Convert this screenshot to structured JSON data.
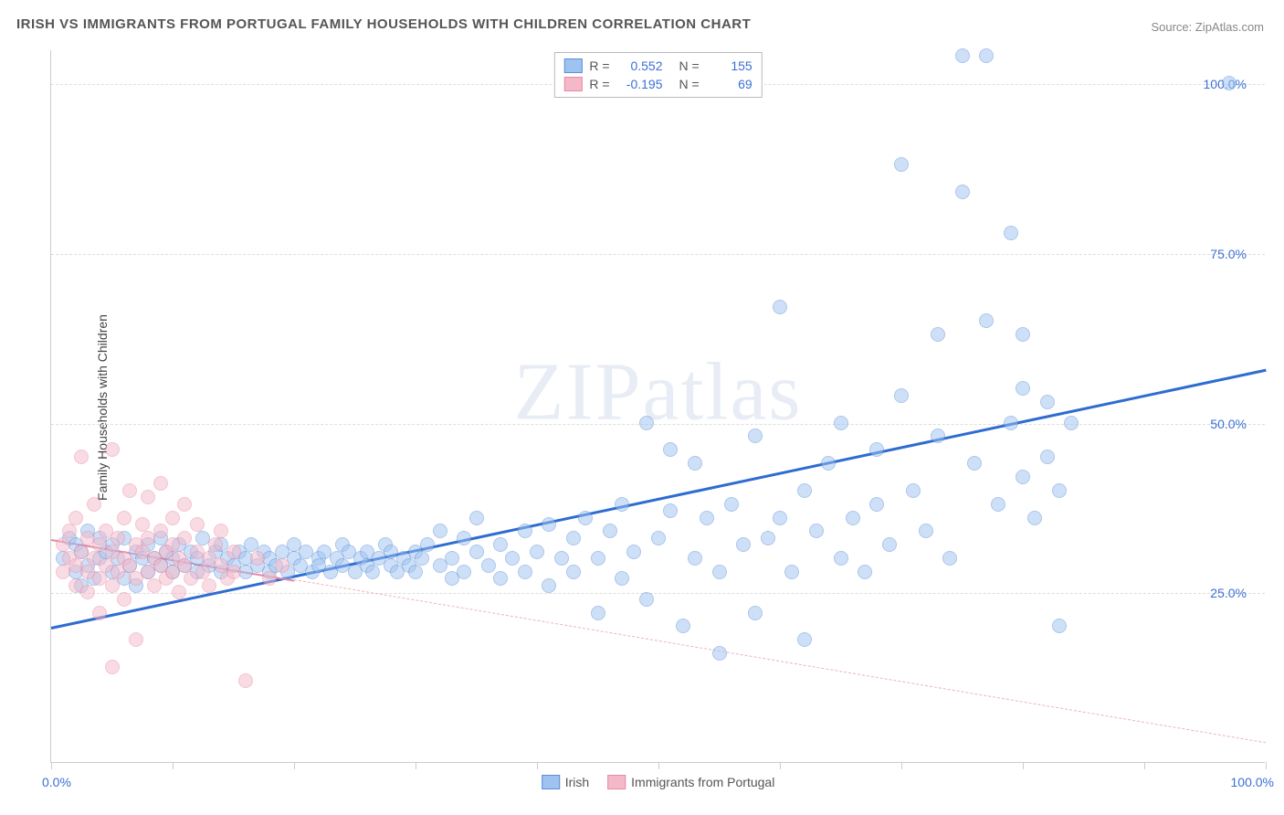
{
  "title": "IRISH VS IMMIGRANTS FROM PORTUGAL FAMILY HOUSEHOLDS WITH CHILDREN CORRELATION CHART",
  "source": "Source: ZipAtlas.com",
  "watermark": "ZIPatlas",
  "yaxis_label": "Family Households with Children",
  "chart": {
    "type": "scatter",
    "xlim": [
      0,
      100
    ],
    "ylim": [
      0,
      105
    ],
    "background_color": "#ffffff",
    "grid_color": "#dddddd",
    "grid_dash": true,
    "axis_color": "#cccccc",
    "tick_color": "#cccccc",
    "y_gridlines": [
      25,
      50,
      75,
      100
    ],
    "y_tick_labels": [
      "25.0%",
      "50.0%",
      "75.0%",
      "100.0%"
    ],
    "y_tick_color": "#3b6fd4",
    "y_tick_fontsize": 14,
    "x_ticks": [
      0,
      10,
      20,
      30,
      40,
      50,
      60,
      70,
      80,
      90,
      100
    ],
    "x_tick_labels": {
      "0": "0.0%",
      "100": "100.0%"
    },
    "x_tick_color": "#3b6fd4",
    "point_radius": 8,
    "point_opacity": 0.5,
    "point_stroke_width": 1
  },
  "series": [
    {
      "name": "Irish",
      "label": "Irish",
      "fill_color": "#9ec3f0",
      "stroke_color": "#5a8fd8",
      "R": "0.552",
      "N": "155",
      "trend": {
        "x1": 0,
        "y1": 20,
        "x2": 100,
        "y2": 58,
        "color": "#2e6cd1",
        "width": 3,
        "dash": false,
        "extrapolate": false
      },
      "points": [
        [
          1,
          30
        ],
        [
          1.5,
          33
        ],
        [
          2,
          32
        ],
        [
          2,
          28
        ],
        [
          2.5,
          26
        ],
        [
          2.5,
          31
        ],
        [
          3,
          34
        ],
        [
          3,
          29
        ],
        [
          3.5,
          27
        ],
        [
          4,
          30
        ],
        [
          4,
          33
        ],
        [
          4.5,
          31
        ],
        [
          5,
          28
        ],
        [
          5,
          32
        ],
        [
          5.5,
          30
        ],
        [
          6,
          33
        ],
        [
          6,
          27
        ],
        [
          6.5,
          29
        ],
        [
          7,
          31
        ],
        [
          7,
          26
        ],
        [
          7.5,
          30
        ],
        [
          8,
          32
        ],
        [
          8,
          28
        ],
        [
          8.5,
          30
        ],
        [
          9,
          29
        ],
        [
          9,
          33
        ],
        [
          9.5,
          31
        ],
        [
          10,
          28
        ],
        [
          10,
          30
        ],
        [
          10.5,
          32
        ],
        [
          11,
          29
        ],
        [
          11.5,
          31
        ],
        [
          12,
          28
        ],
        [
          12,
          30
        ],
        [
          12.5,
          33
        ],
        [
          13,
          29
        ],
        [
          13.5,
          31
        ],
        [
          14,
          28
        ],
        [
          14,
          32
        ],
        [
          14.5,
          30
        ],
        [
          15,
          29
        ],
        [
          15.5,
          31
        ],
        [
          16,
          28
        ],
        [
          16,
          30
        ],
        [
          16.5,
          32
        ],
        [
          17,
          29
        ],
        [
          17.5,
          31
        ],
        [
          18,
          28
        ],
        [
          18,
          30
        ],
        [
          18.5,
          29
        ],
        [
          19,
          31
        ],
        [
          19.5,
          28
        ],
        [
          20,
          30
        ],
        [
          20,
          32
        ],
        [
          20.5,
          29
        ],
        [
          21,
          31
        ],
        [
          21.5,
          28
        ],
        [
          22,
          30
        ],
        [
          22,
          29
        ],
        [
          22.5,
          31
        ],
        [
          23,
          28
        ],
        [
          23.5,
          30
        ],
        [
          24,
          32
        ],
        [
          24,
          29
        ],
        [
          24.5,
          31
        ],
        [
          25,
          28
        ],
        [
          25.5,
          30
        ],
        [
          26,
          29
        ],
        [
          26,
          31
        ],
        [
          26.5,
          28
        ],
        [
          27,
          30
        ],
        [
          27.5,
          32
        ],
        [
          28,
          29
        ],
        [
          28,
          31
        ],
        [
          28.5,
          28
        ],
        [
          29,
          30
        ],
        [
          29.5,
          29
        ],
        [
          30,
          31
        ],
        [
          30,
          28
        ],
        [
          30.5,
          30
        ],
        [
          31,
          32
        ],
        [
          32,
          29
        ],
        [
          32,
          34
        ],
        [
          33,
          30
        ],
        [
          33,
          27
        ],
        [
          34,
          28
        ],
        [
          34,
          33
        ],
        [
          35,
          31
        ],
        [
          35,
          36
        ],
        [
          36,
          29
        ],
        [
          37,
          32
        ],
        [
          37,
          27
        ],
        [
          38,
          30
        ],
        [
          39,
          34
        ],
        [
          39,
          28
        ],
        [
          40,
          31
        ],
        [
          41,
          35
        ],
        [
          41,
          26
        ],
        [
          42,
          30
        ],
        [
          43,
          33
        ],
        [
          43,
          28
        ],
        [
          44,
          36
        ],
        [
          45,
          30
        ],
        [
          45,
          22
        ],
        [
          46,
          34
        ],
        [
          47,
          38
        ],
        [
          47,
          27
        ],
        [
          48,
          31
        ],
        [
          49,
          50
        ],
        [
          49,
          24
        ],
        [
          50,
          33
        ],
        [
          51,
          37
        ],
        [
          51,
          46
        ],
        [
          52,
          20
        ],
        [
          53,
          30
        ],
        [
          53,
          44
        ],
        [
          54,
          36
        ],
        [
          55,
          28
        ],
        [
          55,
          16
        ],
        [
          56,
          38
        ],
        [
          57,
          32
        ],
        [
          58,
          48
        ],
        [
          58,
          22
        ],
        [
          59,
          33
        ],
        [
          60,
          36
        ],
        [
          60,
          67
        ],
        [
          61,
          28
        ],
        [
          62,
          40
        ],
        [
          62,
          18
        ],
        [
          63,
          34
        ],
        [
          64,
          44
        ],
        [
          65,
          30
        ],
        [
          65,
          50
        ],
        [
          66,
          36
        ],
        [
          67,
          28
        ],
        [
          68,
          46
        ],
        [
          68,
          38
        ],
        [
          69,
          32
        ],
        [
          70,
          54
        ],
        [
          70,
          88
        ],
        [
          71,
          40
        ],
        [
          72,
          34
        ],
        [
          73,
          48
        ],
        [
          73,
          63
        ],
        [
          74,
          30
        ],
        [
          75,
          84
        ],
        [
          75,
          104
        ],
        [
          76,
          44
        ],
        [
          77,
          104
        ],
        [
          77,
          65
        ],
        [
          78,
          38
        ],
        [
          79,
          50
        ],
        [
          79,
          78
        ],
        [
          80,
          55
        ],
        [
          80,
          63
        ],
        [
          80,
          42
        ],
        [
          81,
          36
        ],
        [
          82,
          53
        ],
        [
          82,
          45
        ],
        [
          83,
          40
        ],
        [
          83,
          20
        ],
        [
          84,
          50
        ],
        [
          97,
          100
        ]
      ]
    },
    {
      "name": "Immigrants from Portugal",
      "label": "Immigrants from Portugal",
      "fill_color": "#f5b8c8",
      "stroke_color": "#e88aa5",
      "R": "-0.195",
      "N": "69",
      "trend": {
        "x1": 0,
        "y1": 33,
        "x2": 20,
        "y2": 27,
        "color": "#e88aa5",
        "width": 2,
        "dash": false,
        "extrapolate": true,
        "extrapolate_color": "#f0b0c0",
        "extrapolate_dash": true,
        "x2_ext": 100,
        "y2_ext": 3
      },
      "points": [
        [
          1,
          28
        ],
        [
          1,
          32
        ],
        [
          1.5,
          30
        ],
        [
          1.5,
          34
        ],
        [
          2,
          29
        ],
        [
          2,
          26
        ],
        [
          2,
          36
        ],
        [
          2.5,
          31
        ],
        [
          2.5,
          45
        ],
        [
          3,
          28
        ],
        [
          3,
          33
        ],
        [
          3,
          25
        ],
        [
          3.5,
          30
        ],
        [
          3.5,
          38
        ],
        [
          4,
          27
        ],
        [
          4,
          32
        ],
        [
          4,
          22
        ],
        [
          4.5,
          29
        ],
        [
          4.5,
          34
        ],
        [
          5,
          31
        ],
        [
          5,
          26
        ],
        [
          5,
          46
        ],
        [
          5,
          14
        ],
        [
          5.5,
          28
        ],
        [
          5.5,
          33
        ],
        [
          6,
          30
        ],
        [
          6,
          36
        ],
        [
          6,
          24
        ],
        [
          6.5,
          29
        ],
        [
          6.5,
          40
        ],
        [
          7,
          27
        ],
        [
          7,
          32
        ],
        [
          7,
          18
        ],
        [
          7.5,
          31
        ],
        [
          7.5,
          35
        ],
        [
          8,
          28
        ],
        [
          8,
          33
        ],
        [
          8,
          39
        ],
        [
          8.5,
          30
        ],
        [
          8.5,
          26
        ],
        [
          9,
          29
        ],
        [
          9,
          34
        ],
        [
          9,
          41
        ],
        [
          9.5,
          31
        ],
        [
          9.5,
          27
        ],
        [
          10,
          28
        ],
        [
          10,
          36
        ],
        [
          10,
          32
        ],
        [
          10.5,
          30
        ],
        [
          10.5,
          25
        ],
        [
          11,
          29
        ],
        [
          11,
          38
        ],
        [
          11,
          33
        ],
        [
          11.5,
          27
        ],
        [
          12,
          31
        ],
        [
          12,
          35
        ],
        [
          12.5,
          28
        ],
        [
          13,
          30
        ],
        [
          13,
          26
        ],
        [
          13.5,
          32
        ],
        [
          14,
          29
        ],
        [
          14,
          34
        ],
        [
          14.5,
          27
        ],
        [
          15,
          31
        ],
        [
          15,
          28
        ],
        [
          16,
          12
        ],
        [
          17,
          30
        ],
        [
          18,
          27
        ],
        [
          19,
          29
        ]
      ]
    }
  ],
  "legend_top": {
    "border_color": "#bbbbbb",
    "bg": "#ffffff",
    "fontsize": 14,
    "label_color": "#555555",
    "value_color": "#3b6fd4"
  },
  "legend_bottom": {
    "fontsize": 14,
    "label_color": "#555555"
  }
}
